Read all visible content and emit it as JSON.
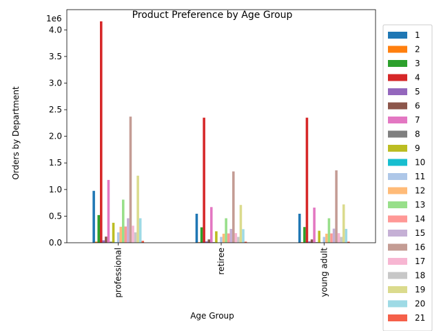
{
  "chart_data": {
    "type": "bar",
    "title": "Product Preference by Age Group",
    "xlabel": "Age Group",
    "ylabel": "Orders by Department",
    "offset_label": "1e6",
    "ylim": [
      0,
      4380000
    ],
    "yticks": [
      0,
      500000,
      1000000,
      1500000,
      2000000,
      2500000,
      3000000,
      3500000,
      4000000
    ],
    "ytick_labels": [
      "0.0",
      "0.5",
      "1.0",
      "1.5",
      "2.0",
      "2.5",
      "3.0",
      "3.5",
      "4.0"
    ],
    "categories": [
      "professional",
      "retiree",
      "young adult"
    ],
    "legend_position": "right, outside plot area",
    "grid": false,
    "series": [
      {
        "name": "1",
        "color": "#1f77b4",
        "values": [
          975000,
          545000,
          545000
        ]
      },
      {
        "name": "2",
        "color": "#ff7f0e",
        "values": [
          20000,
          11000,
          11000
        ]
      },
      {
        "name": "3",
        "color": "#2ca02c",
        "values": [
          520000,
          290000,
          295000
        ]
      },
      {
        "name": "4",
        "color": "#d62728",
        "values": [
          4160000,
          2350000,
          2350000
        ]
      },
      {
        "name": "5",
        "color": "#9467bd",
        "values": [
          45000,
          25000,
          25000
        ]
      },
      {
        "name": "6",
        "color": "#8c564b",
        "values": [
          115000,
          62000,
          62000
        ]
      },
      {
        "name": "7",
        "color": "#e377c2",
        "values": [
          1180000,
          670000,
          660000
        ]
      },
      {
        "name": "8",
        "color": "#7f7f7f",
        "values": [
          20000,
          11000,
          11000
        ]
      },
      {
        "name": "9",
        "color": "#bcbd22",
        "values": [
          375000,
          215000,
          225000
        ]
      },
      {
        "name": "10",
        "color": "#17becf",
        "values": [
          9000,
          5000,
          5000
        ]
      },
      {
        "name": "11",
        "color": "#aec7e8",
        "values": [
          195000,
          110000,
          110000
        ]
      },
      {
        "name": "12",
        "color": "#ffbb78",
        "values": [
          300000,
          170000,
          170000
        ]
      },
      {
        "name": "13",
        "color": "#98df8a",
        "values": [
          810000,
          460000,
          460000
        ]
      },
      {
        "name": "14",
        "color": "#ff9896",
        "values": [
          305000,
          175000,
          175000
        ]
      },
      {
        "name": "15",
        "color": "#c5b0d5",
        "values": [
          460000,
          260000,
          265000
        ]
      },
      {
        "name": "16",
        "color": "#c49c94",
        "values": [
          2370000,
          1340000,
          1360000
        ]
      },
      {
        "name": "17",
        "color": "#f7b6d2",
        "values": [
          320000,
          180000,
          180000
        ]
      },
      {
        "name": "18",
        "color": "#c7c7c7",
        "values": [
          195000,
          110000,
          110000
        ]
      },
      {
        "name": "19",
        "color": "#dbdb8d",
        "values": [
          1260000,
          710000,
          720000
        ]
      },
      {
        "name": "20",
        "color": "#9edae5",
        "values": [
          460000,
          255000,
          260000
        ]
      },
      {
        "name": "21",
        "color": "#f5604a",
        "values": [
          35000,
          20000,
          20000
        ]
      }
    ]
  }
}
